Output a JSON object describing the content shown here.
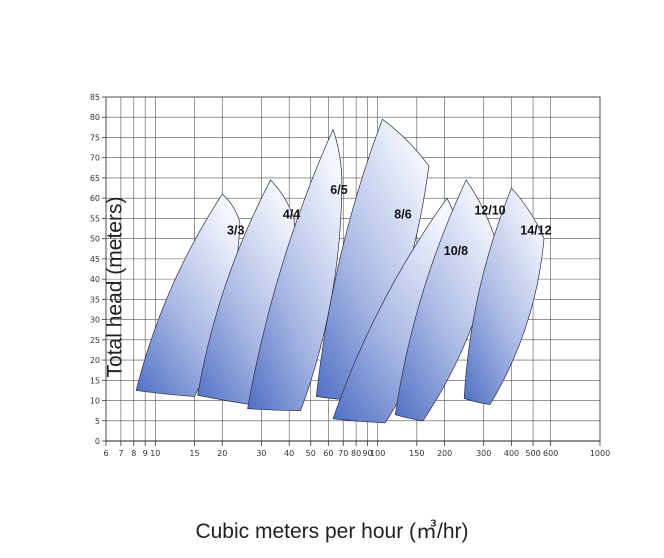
{
  "chart_data": {
    "type": "area",
    "xlabel": "Cubic meters per hour (㎥/hr)",
    "ylabel": "Total head  (meters)",
    "x_scale": "log",
    "xlim": [
      6,
      1000
    ],
    "ylim": [
      0,
      85
    ],
    "x_ticks": [
      6,
      7,
      8,
      9,
      10,
      15,
      20,
      30,
      40,
      50,
      60,
      70,
      80,
      90,
      100,
      150,
      200,
      300,
      400,
      500,
      600,
      1000
    ],
    "x_tick_labels": [
      "6",
      "7",
      "8",
      "9",
      "10",
      "15",
      "20",
      "30",
      "40",
      "50",
      "60",
      "70",
      "80",
      "90",
      "100",
      "150",
      "200",
      "300",
      "400",
      "500",
      "600",
      "1000"
    ],
    "y_ticks": [
      0,
      5,
      10,
      15,
      20,
      25,
      30,
      35,
      40,
      45,
      50,
      55,
      60,
      65,
      70,
      75,
      80,
      85
    ],
    "grid": true,
    "series": [
      {
        "name": "3/3",
        "region": [
          [
            8.2,
            12.5
          ],
          [
            15.0,
            11.0
          ],
          [
            24.0,
            54.0
          ],
          [
            20.0,
            61.0
          ]
        ],
        "label_at": [
          23,
          51
        ]
      },
      {
        "name": "4/4",
        "region": [
          [
            15.5,
            11.3
          ],
          [
            35.0,
            8.0
          ],
          [
            42.0,
            55.0
          ],
          [
            33.0,
            64.5
          ]
        ],
        "label_at": [
          41,
          55
        ]
      },
      {
        "name": "6/5",
        "region": [
          [
            26.0,
            8.0
          ],
          [
            45.0,
            7.5
          ],
          [
            69.0,
            63.0
          ],
          [
            63.0,
            77.0
          ]
        ],
        "label_at": [
          67,
          61
        ]
      },
      {
        "name": "8/6",
        "region": [
          [
            53.0,
            11.0
          ],
          [
            82.0,
            10.0
          ],
          [
            170.0,
            68.0
          ],
          [
            105.0,
            79.5
          ]
        ],
        "label_at": [
          130,
          55
        ]
      },
      {
        "name": "10/8",
        "region": [
          [
            63.0,
            5.5
          ],
          [
            108.0,
            4.5
          ],
          [
            230.0,
            50.0
          ],
          [
            205.0,
            60.0
          ]
        ],
        "label_at": [
          225,
          46
        ]
      },
      {
        "name": "12/10",
        "region": [
          [
            120.0,
            6.5
          ],
          [
            160.0,
            5.0
          ],
          [
            340.0,
            49.5
          ],
          [
            250.0,
            64.5
          ]
        ],
        "label_at": [
          320,
          56
        ]
      },
      {
        "name": "14/12",
        "region": [
          [
            245.0,
            10.5
          ],
          [
            320.0,
            9.0
          ],
          [
            560.0,
            50.0
          ],
          [
            400.0,
            62.5
          ]
        ],
        "label_at": [
          515,
          51
        ]
      }
    ]
  }
}
